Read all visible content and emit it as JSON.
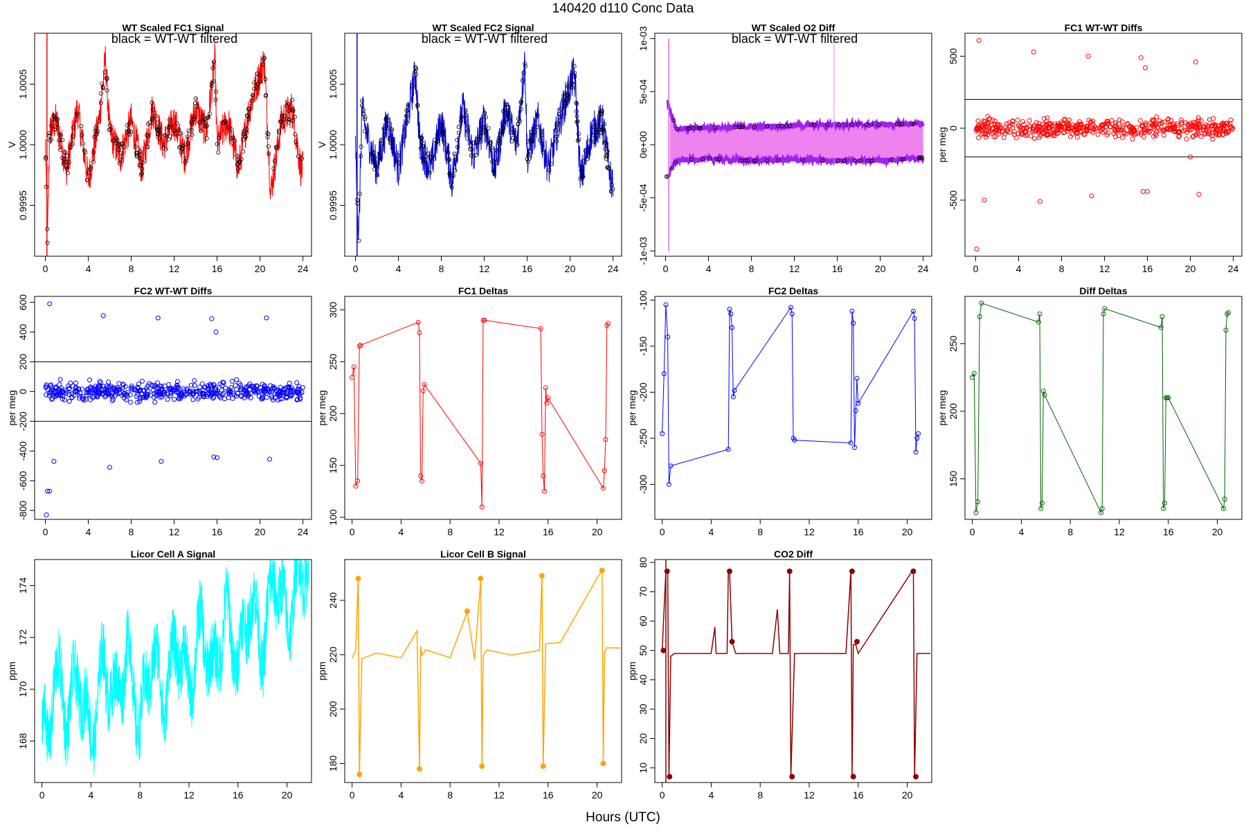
{
  "figure": {
    "title": "140420    d110    Conc Data",
    "xlabel": "Hours (UTC)"
  },
  "chart_data": [
    {
      "id": "p1",
      "type": "line",
      "title": "WT Scaled FC1 Signal",
      "ylabel": "V",
      "annotation": "black = WT-WT filtered",
      "xlim": [
        -1,
        24.8
      ],
      "ylim": [
        0.99908,
        1.00092
      ],
      "xticks": [
        0,
        4,
        8,
        12,
        16,
        20,
        24
      ],
      "yticks": [
        0.9995,
        1.0,
        1.0005
      ],
      "ytick_labels": [
        "0.9995",
        "1.0000",
        "1.0005"
      ],
      "series": [
        {
          "values": [
            [
              0,
              1.0
            ],
            [
              0.2,
              0.9992
            ],
            [
              0.4,
              1.0001
            ],
            [
              1,
              1.0002
            ],
            [
              2,
              0.9998
            ],
            [
              3,
              1.0003
            ],
            [
              4,
              0.9997
            ],
            [
              5,
              1.0002
            ],
            [
              5.6,
              1.0007
            ],
            [
              6,
              1.0001
            ],
            [
              7,
              0.9999
            ],
            [
              8,
              1.0002
            ],
            [
              9,
              0.9998
            ],
            [
              10,
              1.0003
            ],
            [
              11,
              1.0
            ],
            [
              12,
              1.0002
            ],
            [
              13,
              0.9999
            ],
            [
              14,
              1.0003
            ],
            [
              15,
              1.0001
            ],
            [
              15.8,
              1.0007
            ],
            [
              16,
              1.0
            ],
            [
              17,
              1.0002
            ],
            [
              18,
              0.9998
            ],
            [
              19,
              1.0003
            ],
            [
              20.4,
              1.0007
            ],
            [
              21,
              0.9996
            ],
            [
              22,
              1.0002
            ],
            [
              23,
              1.0003
            ],
            [
              23.8,
              0.9998
            ]
          ]
        }
      ]
    },
    {
      "id": "p2",
      "type": "line",
      "title": "WT Scaled FC2 Signal",
      "ylabel": "V",
      "annotation": "black = WT-WT filtered",
      "xlim": [
        -1,
        24.8
      ],
      "ylim": [
        0.99908,
        1.00092
      ],
      "xticks": [
        0,
        4,
        8,
        12,
        16,
        20,
        24
      ],
      "yticks": [
        0.9995,
        1.0,
        1.0005
      ],
      "ytick_labels": [
        "0.9995",
        "1.0000",
        "1.0005"
      ],
      "series": [
        {
          "values": [
            [
              0,
              1.0
            ],
            [
              0.3,
              0.9992
            ],
            [
              0.6,
              1.0003
            ],
            [
              1,
              1.0001
            ],
            [
              2,
              0.9998
            ],
            [
              3,
              1.0002
            ],
            [
              4,
              0.9998
            ],
            [
              5,
              1.0003
            ],
            [
              5.6,
              1.0006
            ],
            [
              6,
              1.0
            ],
            [
              7,
              0.9998
            ],
            [
              8,
              1.0002
            ],
            [
              9,
              0.9997
            ],
            [
              10,
              1.0003
            ],
            [
              11,
              0.9999
            ],
            [
              12,
              1.0002
            ],
            [
              13,
              0.9998
            ],
            [
              14,
              1.0003
            ],
            [
              15,
              1.0
            ],
            [
              15.8,
              1.0007
            ],
            [
              16,
              0.9999
            ],
            [
              17,
              1.0002
            ],
            [
              18,
              0.9998
            ],
            [
              19,
              1.0002
            ],
            [
              20.4,
              1.0006
            ],
            [
              21,
              0.9997
            ],
            [
              22,
              1.0001
            ],
            [
              23,
              1.0002
            ],
            [
              23.8,
              0.9997
            ]
          ]
        }
      ]
    },
    {
      "id": "p3",
      "type": "line",
      "title": "WT Scaled O2 Diff",
      "ylabel": "",
      "annotation": "black = WT-WT filtered",
      "xlim": [
        -1,
        24.8
      ],
      "ylim": [
        -0.00105,
        0.00105
      ],
      "xticks": [
        0,
        4,
        8,
        12,
        16,
        20,
        24
      ],
      "yticks": [
        -0.001,
        -0.0005,
        0.0,
        0.0005,
        0.001
      ],
      "ytick_labels": [
        "-1e-03",
        "-5e-04",
        "0e+00",
        "5e-04",
        "1e-03"
      ],
      "series": [
        {
          "name": "upper",
          "values": [
            [
              0.2,
              0.0004
            ],
            [
              1,
              0.00015
            ],
            [
              4,
              0.00016
            ],
            [
              8,
              0.00017
            ],
            [
              12,
              0.00018
            ],
            [
              16,
              0.00019
            ],
            [
              20,
              0.00019
            ],
            [
              24,
              0.0002
            ]
          ]
        },
        {
          "name": "lower",
          "values": [
            [
              0.2,
              -0.0003
            ],
            [
              1,
              -0.00015
            ],
            [
              4,
              -0.00013
            ],
            [
              8,
              -0.00015
            ],
            [
              12,
              -0.00014
            ],
            [
              16,
              -0.00015
            ],
            [
              20,
              -0.00015
            ],
            [
              24,
              -0.00012
            ]
          ]
        }
      ]
    },
    {
      "id": "p4",
      "type": "scatter",
      "title": "FC1 WT-WT Diffs",
      "ylabel": "per meg",
      "xlim": [
        -1,
        24.8
      ],
      "ylim": [
        -890,
        660
      ],
      "xticks": [
        0,
        4,
        8,
        12,
        16,
        20,
        24
      ],
      "yticks": [
        -500,
        0,
        500
      ],
      "hlines": [
        200,
        -200
      ],
      "outliers": [
        [
          0.3,
          610
        ],
        [
          5.4,
          530
        ],
        [
          10.5,
          500
        ],
        [
          15.4,
          490
        ],
        [
          15.8,
          420
        ],
        [
          20.5,
          460
        ],
        [
          0.1,
          -840
        ],
        [
          0.8,
          -500
        ],
        [
          6,
          -510
        ],
        [
          10.8,
          -470
        ],
        [
          15.6,
          -440
        ],
        [
          16,
          -440
        ],
        [
          20,
          -200
        ],
        [
          20.8,
          -460
        ]
      ]
    },
    {
      "id": "p5",
      "type": "scatter",
      "title": "FC2 WT-WT Diffs",
      "ylabel": "per meg",
      "xlim": [
        -1,
        24.8
      ],
      "ylim": [
        -860,
        640
      ],
      "xticks": [
        0,
        4,
        8,
        12,
        16,
        20,
        24
      ],
      "yticks": [
        -800,
        -600,
        -400,
        -200,
        0,
        200,
        400,
        600
      ],
      "hlines": [
        200,
        -200
      ],
      "outliers": [
        [
          0.4,
          590
        ],
        [
          5.4,
          510
        ],
        [
          10.5,
          495
        ],
        [
          15.5,
          490
        ],
        [
          15.9,
          400
        ],
        [
          20.6,
          495
        ],
        [
          0.1,
          -830
        ],
        [
          0.2,
          -670
        ],
        [
          0.4,
          -670
        ],
        [
          0.8,
          -470
        ],
        [
          6,
          -510
        ],
        [
          10.8,
          -470
        ],
        [
          15.7,
          -440
        ],
        [
          16,
          -445
        ],
        [
          20.9,
          -455
        ]
      ]
    },
    {
      "id": "p6",
      "type": "line",
      "title": "FC1 Deltas",
      "ylabel": "per meg",
      "xlim": [
        -0.6,
        22
      ],
      "ylim": [
        98,
        313
      ],
      "xticks": [
        0,
        4,
        8,
        12,
        16,
        20
      ],
      "yticks": [
        100,
        150,
        200,
        250,
        300
      ],
      "color": "#ff0000",
      "x": [
        0,
        0.15,
        0.3,
        0.45,
        0.6,
        0.7,
        5.4,
        5.5,
        5.6,
        5.7,
        5.8,
        5.9,
        10.5,
        10.6,
        10.7,
        10.8,
        15.4,
        15.5,
        15.6,
        15.7,
        15.8,
        15.9,
        16.0,
        20.5,
        20.6,
        20.7,
        20.8,
        20.9
      ],
      "y": [
        235,
        245,
        130,
        135,
        265,
        266,
        288,
        278,
        140,
        135,
        222,
        228,
        152,
        110,
        290,
        290,
        282,
        180,
        140,
        125,
        225,
        210,
        215,
        128,
        145,
        175,
        285,
        287
      ]
    },
    {
      "id": "p7",
      "type": "line",
      "title": "FC2 Deltas",
      "ylabel": "per meg",
      "xlim": [
        -0.6,
        22
      ],
      "ylim": [
        -338,
        -96
      ],
      "xticks": [
        0,
        4,
        8,
        12,
        16,
        20
      ],
      "yticks": [
        -300,
        -250,
        -200,
        -150,
        -100
      ],
      "color": "#0000ff",
      "x": [
        0,
        0.15,
        0.3,
        0.45,
        0.55,
        0.7,
        5.4,
        5.5,
        5.6,
        5.7,
        5.8,
        5.9,
        10.5,
        10.6,
        10.7,
        10.8,
        15.4,
        15.5,
        15.6,
        15.7,
        15.8,
        15.9,
        16.0,
        20.5,
        20.6,
        20.7,
        20.8,
        20.9
      ],
      "y": [
        -245,
        -180,
        -105,
        -140,
        -300,
        -280,
        -262,
        -110,
        -115,
        -130,
        -205,
        -198,
        -108,
        -115,
        -250,
        -252,
        -255,
        -112,
        -125,
        -260,
        -220,
        -185,
        -212,
        -112,
        -120,
        -265,
        -250,
        -245
      ]
    },
    {
      "id": "p8",
      "type": "line",
      "title": "Diff Deltas",
      "ylabel": "per meg",
      "xlim": [
        -0.6,
        22
      ],
      "ylim": [
        120,
        285
      ],
      "xticks": [
        0,
        4,
        8,
        12,
        16,
        20
      ],
      "yticks": [
        150,
        200,
        250
      ],
      "color": "#006400",
      "x": [
        0,
        0.15,
        0.3,
        0.45,
        0.6,
        0.75,
        5.4,
        5.5,
        5.6,
        5.7,
        5.8,
        5.9,
        10.5,
        10.6,
        10.7,
        10.8,
        15.4,
        15.5,
        15.6,
        15.7,
        15.8,
        15.9,
        16.0,
        20.5,
        20.6,
        20.7,
        20.8,
        20.9
      ],
      "y": [
        225,
        228,
        125,
        133,
        270,
        280,
        266,
        272,
        128,
        132,
        215,
        212,
        125,
        128,
        272,
        276,
        262,
        270,
        128,
        132,
        210,
        210,
        210,
        128,
        135,
        260,
        272,
        273
      ]
    },
    {
      "id": "p9",
      "type": "line",
      "title": "Licor Cell A Signal",
      "ylabel": "ppm",
      "xlim": [
        -0.6,
        22
      ],
      "ylim": [
        166.4,
        175
      ],
      "xticks": [
        0,
        4,
        8,
        12,
        16,
        20
      ],
      "yticks": [
        168,
        170,
        172,
        174
      ],
      "color": "#00ffff",
      "x": [
        0,
        0.5,
        1,
        2,
        3,
        4,
        5,
        6,
        7,
        8,
        9,
        10,
        11,
        12,
        13,
        14,
        15,
        16,
        17,
        18,
        19,
        20,
        21,
        21.8
      ],
      "y": [
        169,
        167.5,
        171,
        169,
        170.5,
        168,
        171,
        169.5,
        171.5,
        168.5,
        171.5,
        169.5,
        172,
        170,
        172.5,
        170.5,
        173,
        171,
        173.5,
        171.5,
        174.5,
        172.5,
        174.5,
        175
      ]
    },
    {
      "id": "p10",
      "type": "line",
      "title": "Licor Cell B Signal",
      "ylabel": "ppm",
      "xlim": [
        -0.6,
        22
      ],
      "ylim": [
        173,
        255
      ],
      "xticks": [
        0,
        4,
        8,
        12,
        16,
        20
      ],
      "yticks": [
        180,
        200,
        220,
        240
      ],
      "color": "#ffa500",
      "x": [
        0,
        0.3,
        0.5,
        0.6,
        0.8,
        2,
        4,
        5.3,
        5.5,
        5.6,
        5.7,
        6,
        8,
        9.4,
        10,
        10.5,
        10.6,
        10.7,
        11,
        13,
        15.3,
        15.5,
        15.6,
        15.8,
        17,
        20.4,
        20.5,
        20.6,
        20.8,
        21.9
      ],
      "y": [
        219,
        222,
        248,
        176,
        219,
        221,
        219,
        228,
        178,
        224,
        219,
        221,
        219,
        236,
        219,
        248,
        179,
        219,
        221,
        220,
        221,
        249,
        179,
        224,
        224,
        251,
        180,
        221,
        223,
        223
      ]
    },
    {
      "id": "p11",
      "type": "line",
      "title": "CO2 Diff",
      "ylabel": "ppm",
      "xlim": [
        -0.6,
        22
      ],
      "ylim": [
        5,
        81
      ],
      "xticks": [
        0,
        4,
        8,
        12,
        16,
        20
      ],
      "yticks": [
        10,
        20,
        30,
        40,
        50,
        60,
        70,
        80
      ],
      "color": "#8b0000",
      "x": [
        0,
        0.3,
        0.45,
        0.55,
        0.7,
        1,
        4,
        4.3,
        4.4,
        5.3,
        5.4,
        5.5,
        5.7,
        6,
        9,
        9.4,
        9.6,
        10.3,
        10.4,
        10.5,
        10.8,
        11,
        15,
        15.4,
        15.5,
        15.6,
        15.8,
        16,
        20.4,
        20.5,
        20.6,
        20.8,
        21.9
      ],
      "y": [
        50,
        77,
        77,
        7,
        48,
        49,
        49,
        58,
        49,
        49,
        77,
        77,
        53,
        49,
        49,
        64,
        49,
        49,
        77,
        7,
        49,
        49,
        49,
        77,
        7,
        52,
        52,
        49,
        77,
        77,
        7,
        49,
        49
      ],
      "markers": [
        [
          0.1,
          50
        ],
        [
          0.4,
          77
        ],
        [
          0.6,
          7
        ],
        [
          5.5,
          77
        ],
        [
          5.7,
          53
        ],
        [
          10.4,
          77
        ],
        [
          10.6,
          7
        ],
        [
          15.5,
          77
        ],
        [
          15.6,
          7
        ],
        [
          15.9,
          53
        ],
        [
          20.5,
          77
        ],
        [
          20.7,
          7
        ]
      ]
    }
  ]
}
